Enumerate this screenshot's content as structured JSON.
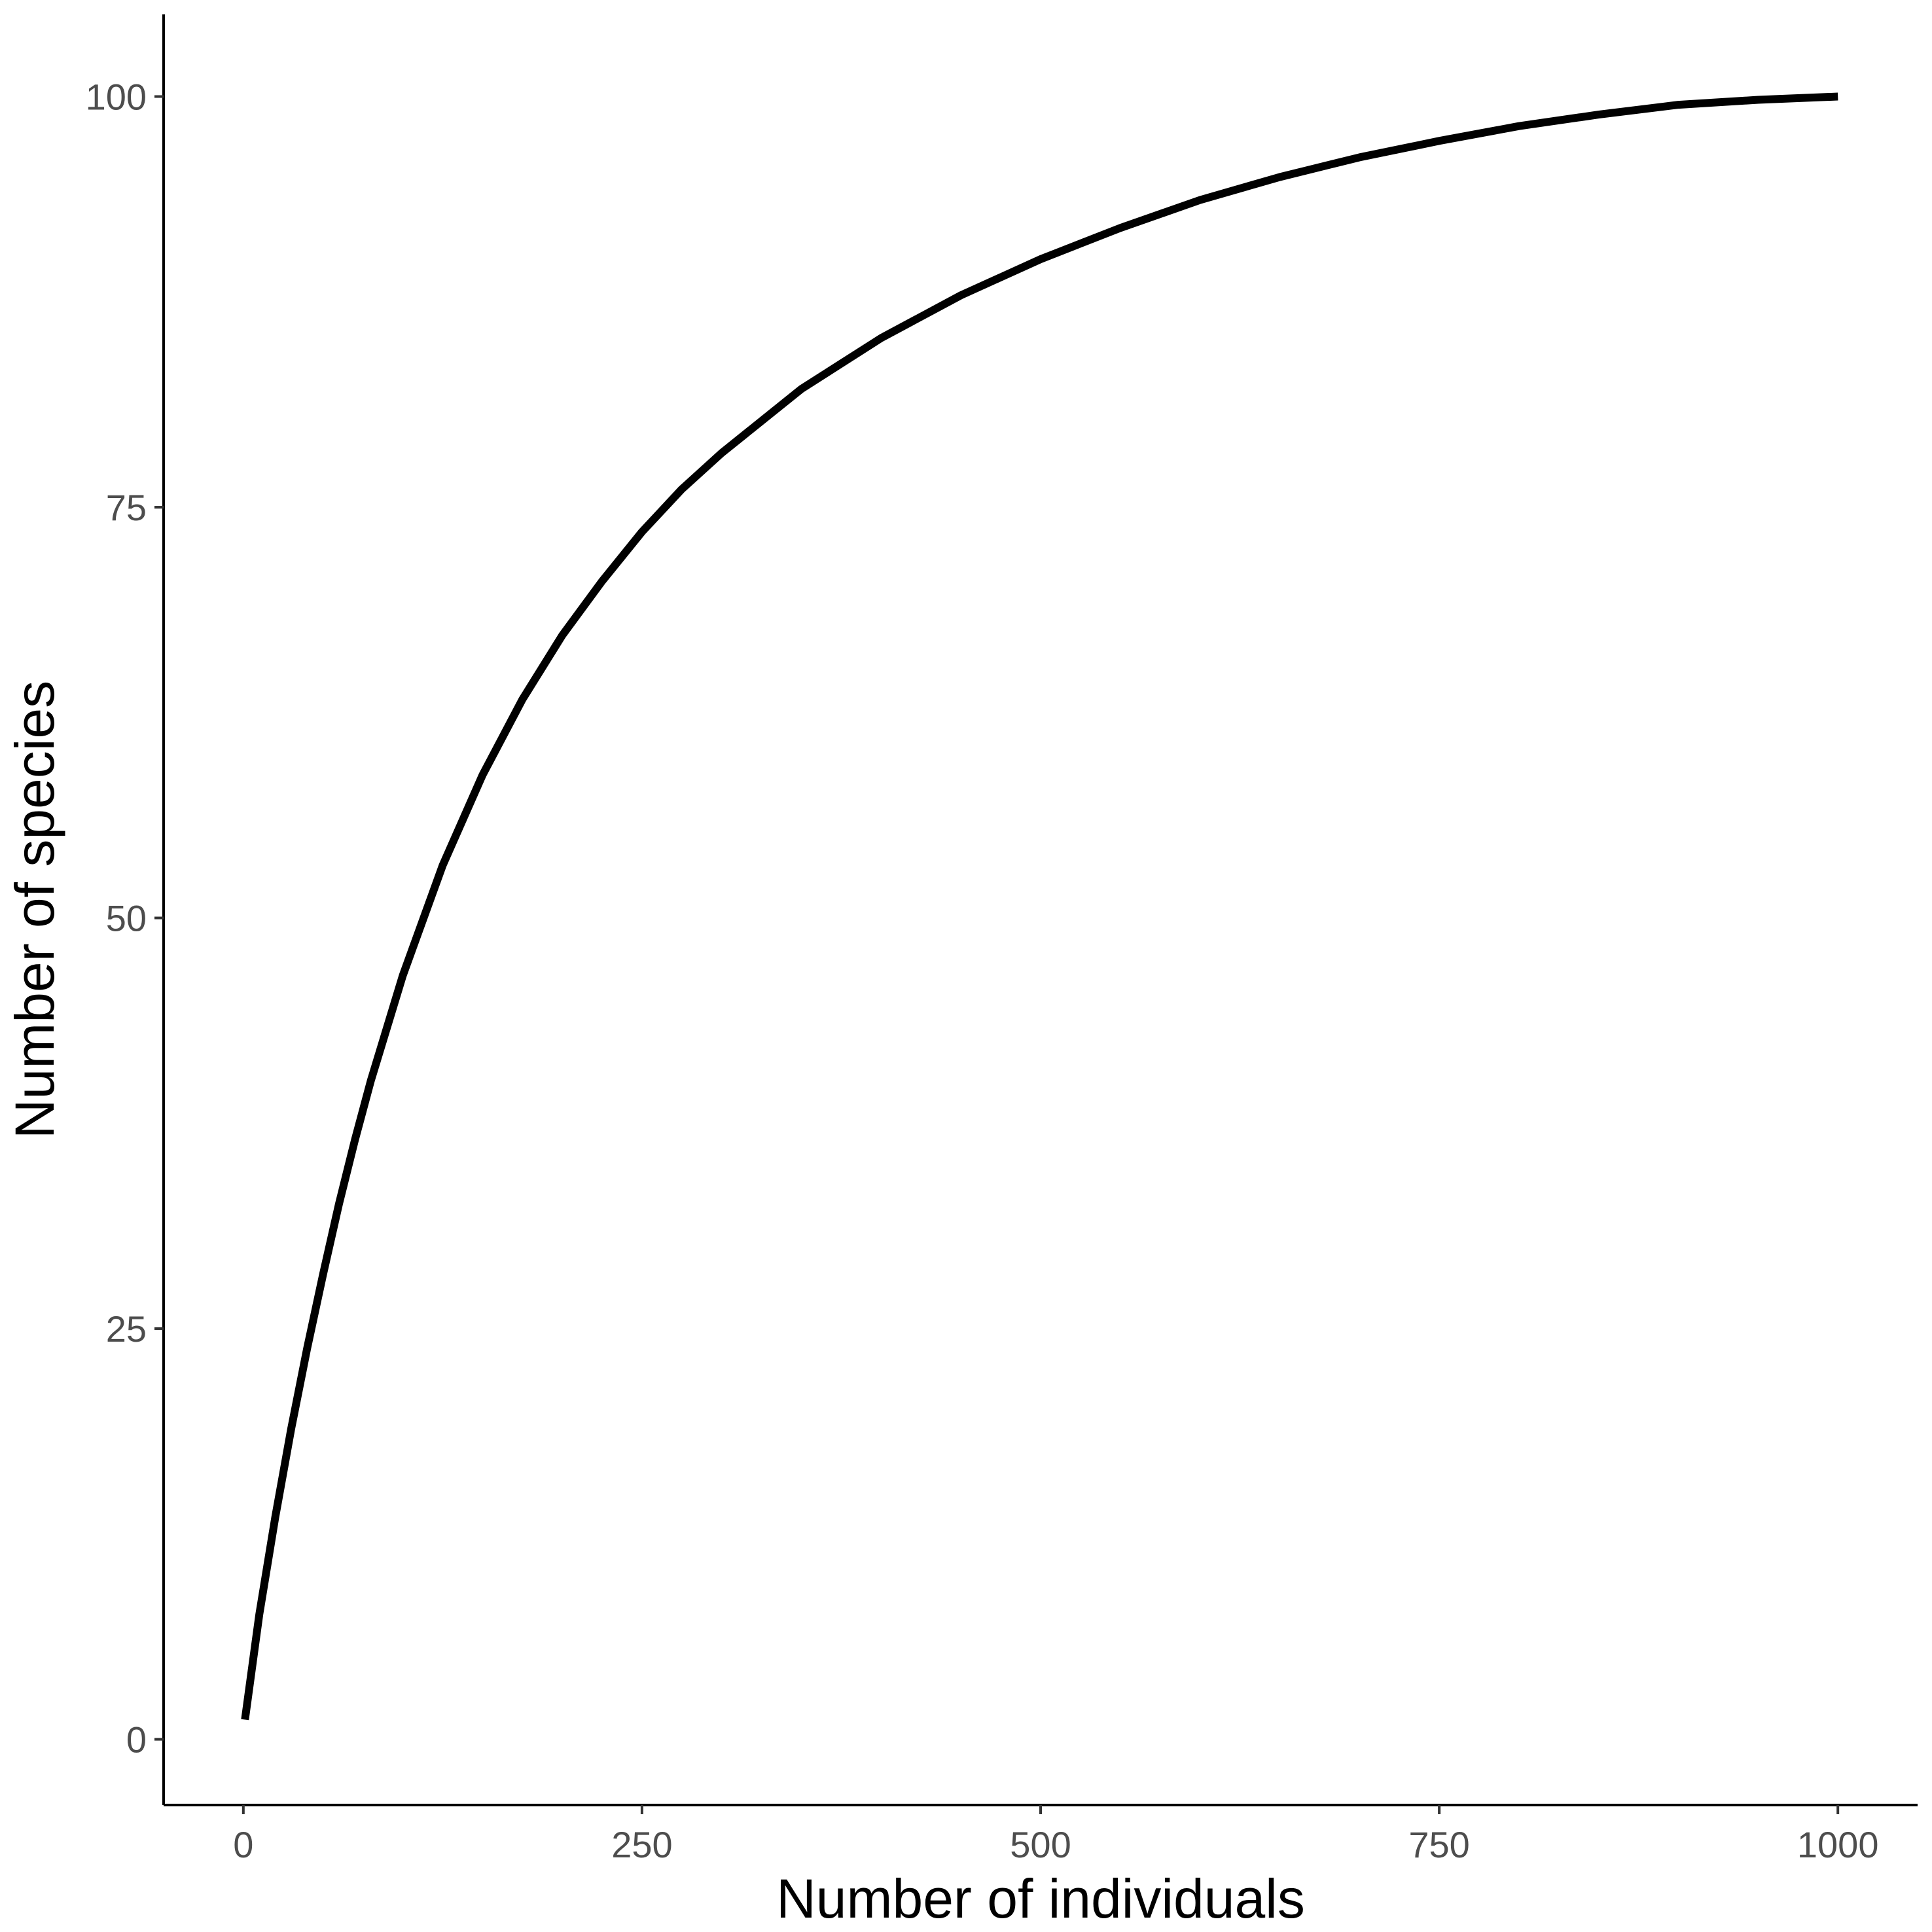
{
  "chart_data": {
    "type": "line",
    "title": "",
    "xlabel": "Number of individuals",
    "ylabel": "Number of species",
    "xlim": [
      -50,
      1050
    ],
    "ylim": [
      -4,
      105
    ],
    "x_ticks": [
      0,
      250,
      500,
      750,
      1000
    ],
    "x_tick_labels": [
      "0",
      "250",
      "500",
      "750",
      "1000"
    ],
    "y_ticks": [
      0,
      25,
      50,
      75,
      100
    ],
    "y_tick_labels": [
      "0",
      "25",
      "50",
      "75",
      "100"
    ],
    "grid": false,
    "series": [
      {
        "color": "#000000",
        "x": [
          1,
          10,
          20,
          30,
          40,
          50,
          60,
          70,
          80,
          100,
          125,
          150,
          175,
          200,
          225,
          250,
          275,
          300,
          350,
          400,
          450,
          500,
          550,
          600,
          650,
          700,
          750,
          800,
          850,
          900,
          950,
          1000
        ],
        "y": [
          1.2,
          7.6,
          13.5,
          18.9,
          23.8,
          28.3,
          32.6,
          36.5,
          40.1,
          46.5,
          53.2,
          58.7,
          63.3,
          67.2,
          70.5,
          73.5,
          76.1,
          78.3,
          82.2,
          85.3,
          87.9,
          90.1,
          92.0,
          93.7,
          95.1,
          96.3,
          97.3,
          98.2,
          98.9,
          99.5,
          99.8,
          100.0
        ]
      }
    ]
  }
}
